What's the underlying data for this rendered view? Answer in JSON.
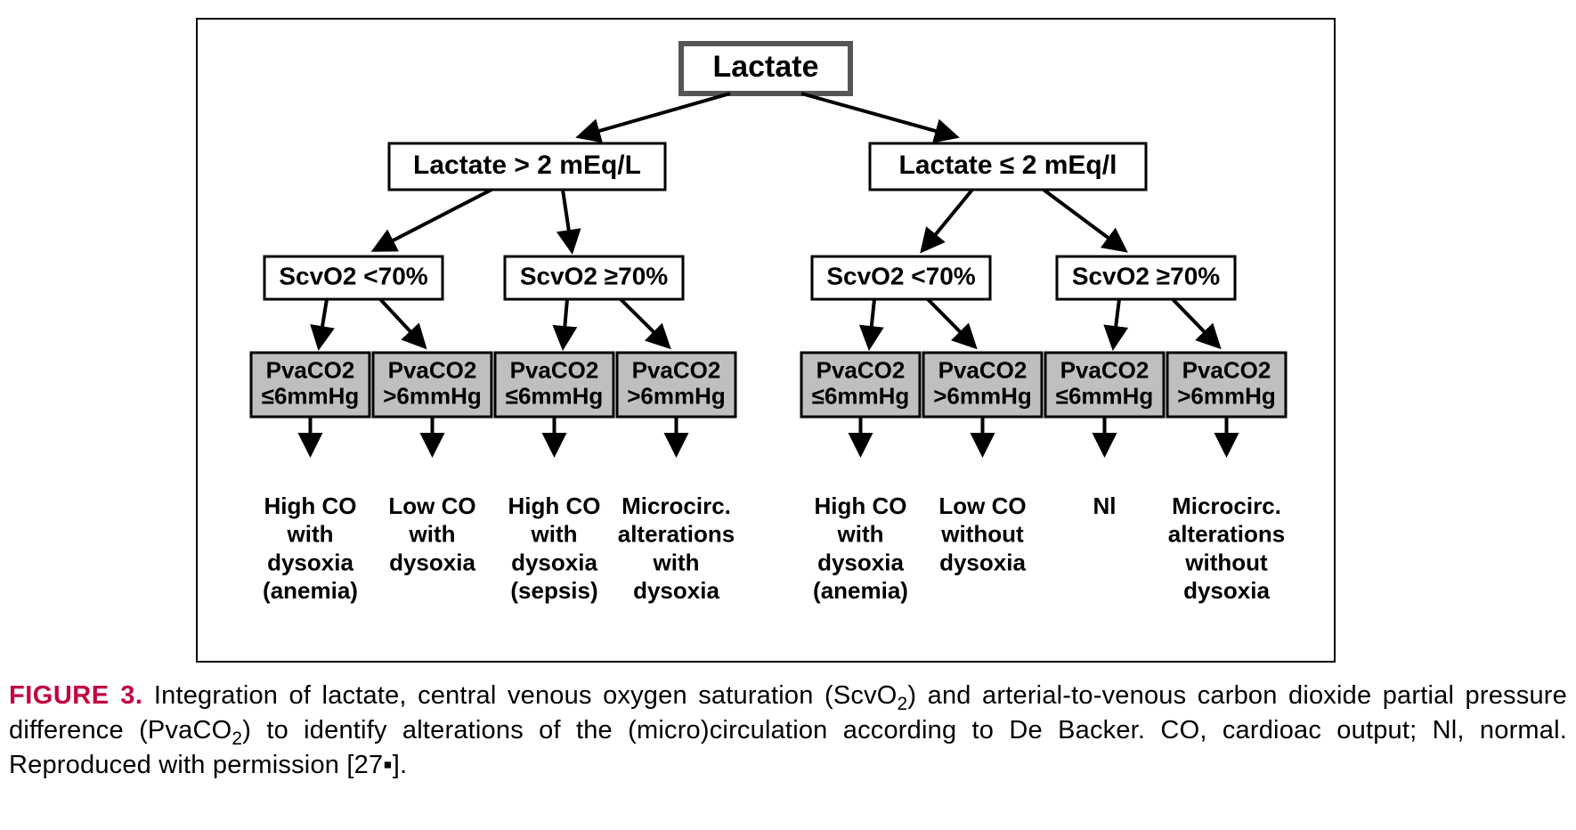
{
  "flowchart": {
    "type": "tree",
    "background_color": "#ffffff",
    "frame_border_color": "#000000",
    "frame_border_width": 2,
    "node_font_family": "Arial",
    "node_font_weight": "700",
    "arrow_color": "#000000",
    "arrow_stroke_width": 4,
    "root": {
      "label": "Lactate",
      "fontsize": 34,
      "border_color": "#555555",
      "border_width": 6,
      "fill": "#ffffff"
    },
    "level2": {
      "fontsize": 30,
      "border_color": "#000000",
      "border_width": 3,
      "fill": "#ffffff",
      "nodes": [
        {
          "id": "lac_hi",
          "label": "Lactate > 2 mEq/L"
        },
        {
          "id": "lac_lo",
          "label": "Lactate ≤ 2 mEq/l"
        }
      ]
    },
    "level3": {
      "fontsize": 28,
      "border_color": "#000000",
      "border_width": 3,
      "fill": "#ffffff",
      "nodes": [
        {
          "id": "s1",
          "label": "ScvO2 <70%"
        },
        {
          "id": "s2",
          "label": "ScvO2 ≥70%"
        },
        {
          "id": "s3",
          "label": "ScvO2 <70%"
        },
        {
          "id": "s4",
          "label": "ScvO2 ≥70%"
        }
      ]
    },
    "level4": {
      "fontsize": 26,
      "border_color": "#000000",
      "border_width": 3,
      "fill": "#bfbfbf",
      "nodes": [
        {
          "id": "p1",
          "l1": "PvaCO2",
          "l2": "≤6mmHg"
        },
        {
          "id": "p2",
          "l1": "PvaCO2",
          "l2": ">6mmHg"
        },
        {
          "id": "p3",
          "l1": "PvaCO2",
          "l2": "≤6mmHg"
        },
        {
          "id": "p4",
          "l1": "PvaCO2",
          "l2": ">6mmHg"
        },
        {
          "id": "p5",
          "l1": "PvaCO2",
          "l2": "≤6mmHg"
        },
        {
          "id": "p6",
          "l1": "PvaCO2",
          "l2": ">6mmHg"
        },
        {
          "id": "p7",
          "l1": "PvaCO2",
          "l2": "≤6mmHg"
        },
        {
          "id": "p8",
          "l1": "PvaCO2",
          "l2": ">6mmHg"
        }
      ]
    },
    "leaves": {
      "fontsize": 26,
      "font_weight": "700",
      "nodes": [
        {
          "id": "o1",
          "lines": [
            "High CO",
            "with",
            "dysoxia",
            "(anemia)"
          ]
        },
        {
          "id": "o2",
          "lines": [
            "Low CO",
            "with",
            "dysoxia"
          ]
        },
        {
          "id": "o3",
          "lines": [
            "High CO",
            "with",
            "dysoxia",
            "(sepsis)"
          ]
        },
        {
          "id": "o4",
          "lines": [
            "Microcirc.",
            "alterations",
            "with",
            "dysoxia"
          ]
        },
        {
          "id": "o5",
          "lines": [
            "High CO",
            "with",
            "dysoxia",
            "(anemia)"
          ]
        },
        {
          "id": "o6",
          "lines": [
            "Low CO",
            "without",
            "dysoxia"
          ]
        },
        {
          "id": "o7",
          "lines": [
            "Nl"
          ]
        },
        {
          "id": "o8",
          "lines": [
            "Microcirc.",
            "alterations",
            "without",
            "dysoxia"
          ]
        }
      ]
    }
  },
  "caption": {
    "label": "FIGURE 3.",
    "label_color": "#c3003f",
    "fontsize": 29,
    "text_before_scvo2": " Integration of lactate, central venous oxygen saturation (ScvO",
    "sub1": "2",
    "text_mid": ") and arterial-to-venous carbon dioxide partial pressure difference (PvaCO",
    "sub2": "2",
    "text_after": ") to identify alterations of the (micro)circulation according to De Backer. CO, cardioac output; Nl, normal. Reproduced with permission [27",
    "bullet": "▪",
    "text_end": "]."
  }
}
